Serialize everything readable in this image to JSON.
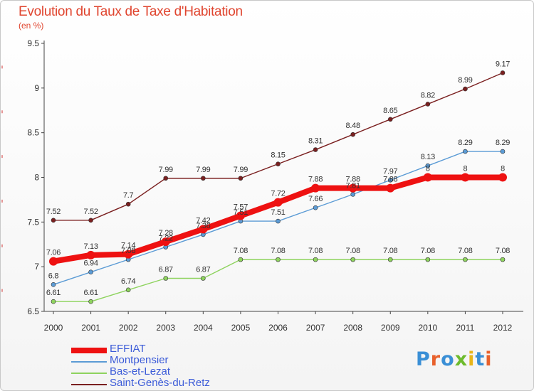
{
  "title": "Evolution du Taux de Taxe d'Habitation",
  "subtitle": "(en %)",
  "logo": {
    "text": "Proxiti",
    "colors": [
      "#3a8fd6",
      "#e8612c",
      "#3a8fd6",
      "#6dbb2d",
      "#e8b51a",
      "#3a8fd6",
      "#e8612c"
    ]
  },
  "chart_data": {
    "type": "line",
    "categories": [
      "2000",
      "2001",
      "2002",
      "2003",
      "2004",
      "2005",
      "2006",
      "2007",
      "2008",
      "2009",
      "2010",
      "2011",
      "2012"
    ],
    "ylim": [
      6.5,
      9.5
    ],
    "yticks": [
      "6.5",
      "7",
      "7.5",
      "8",
      "8.5",
      "9",
      "9.5"
    ],
    "grid": false,
    "legend_position": "bottom-left",
    "series": [
      {
        "name": "Saint-Genès-du-Retz",
        "color": "#7a1f1f",
        "values": [
          7.52,
          7.52,
          7.7,
          7.99,
          7.99,
          7.99,
          8.15,
          8.31,
          8.48,
          8.65,
          8.82,
          8.99,
          9.17
        ],
        "labels": [
          "7.52",
          "7.52",
          "7.7",
          "7.99",
          "7.99",
          "7.99",
          "8.15",
          "8.31",
          "8.48",
          "8.65",
          "8.82",
          "8.99",
          "9.17"
        ]
      },
      {
        "name": "Bas-et-Lezat",
        "color": "#8ed35e",
        "values": [
          6.61,
          6.61,
          6.74,
          6.87,
          6.87,
          7.08,
          7.08,
          7.08,
          7.08,
          7.08,
          7.08,
          7.08,
          7.08
        ],
        "labels": [
          "6.61",
          "6.61",
          "6.74",
          "6.87",
          "6.87",
          "7.08",
          "7.08",
          "7.08",
          "7.08",
          "7.08",
          "7.08",
          "7.08",
          "7.08"
        ]
      },
      {
        "name": "Montpensier",
        "color": "#5b9bd5",
        "values": [
          6.8,
          6.94,
          7.08,
          7.22,
          7.36,
          7.51,
          7.51,
          7.66,
          7.81,
          7.97,
          8.13,
          8.29,
          8.29
        ],
        "labels": [
          "6.8",
          "6.94",
          "7.08",
          "7.22",
          "7.36",
          "7.51",
          "7.51",
          "7.66",
          "7.81",
          "7.97",
          "8.13",
          "8.29",
          "8.29"
        ]
      },
      {
        "name": "EFFIAT",
        "color": "#ee1111",
        "values": [
          7.06,
          7.13,
          7.14,
          7.28,
          7.42,
          7.57,
          7.72,
          7.88,
          7.88,
          7.88,
          8.0,
          8.0,
          8.0
        ],
        "labels": [
          "7.06",
          "7.13",
          "7.14",
          "7.28",
          "7.42",
          "7.57",
          "7.72",
          "7.88",
          "7.88",
          "7.88",
          "8",
          "8",
          "8"
        ]
      }
    ]
  }
}
